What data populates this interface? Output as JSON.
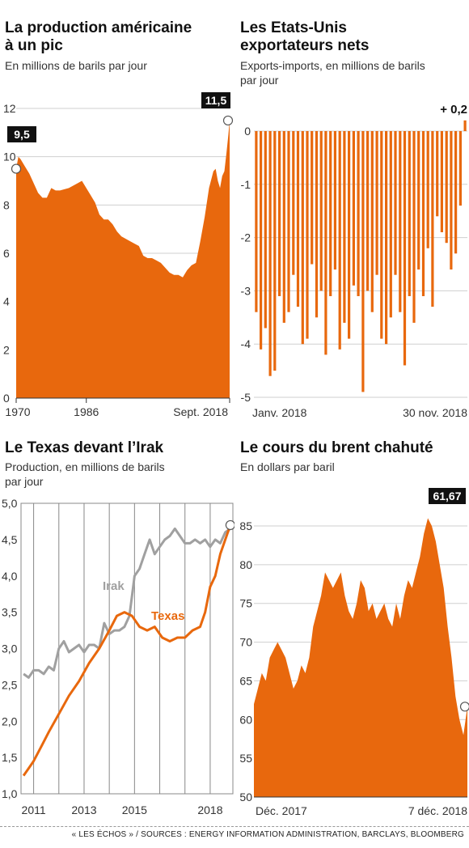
{
  "source": "« LES ÉCHOS » / SOURCES : ENERGY INFORMATION ADMINISTRATION, BARCLAYS, BLOOMBERG",
  "colors": {
    "orange": "#e8680d",
    "grey": "#a0a0a0",
    "grid": "#cfcfcf",
    "text": "#111111"
  },
  "chart_data": [
    {
      "type": "area",
      "title": "La production américaine\nà un pic",
      "subtitle": "En millions de barils par jour",
      "ylim": [
        0,
        12
      ],
      "yticks": [
        "0",
        "2",
        "4",
        "6",
        "8",
        "10",
        "12"
      ],
      "xticks": [
        "1970",
        "1986",
        "Sept. 2018"
      ],
      "xlim": [
        1970,
        2018.7
      ],
      "x": [
        1970,
        1970.5,
        1971,
        1972,
        1973,
        1974,
        1975,
        1976,
        1977,
        1978,
        1979,
        1980,
        1982,
        1984,
        1985,
        1986,
        1987,
        1988,
        1989,
        1990,
        1991,
        1992,
        1993,
        1994,
        1995,
        1996,
        1997,
        1998,
        1999,
        2000,
        2001,
        2002,
        2003,
        2004,
        2005,
        2006,
        2007,
        2008,
        2009,
        2010,
        2011,
        2012,
        2013,
        2014,
        2015,
        2015.5,
        2016,
        2016.5,
        2017,
        2017.5,
        2018,
        2018.4,
        2018.7
      ],
      "values": [
        9.5,
        10,
        9.9,
        9.6,
        9.3,
        8.9,
        8.5,
        8.3,
        8.3,
        8.7,
        8.6,
        8.6,
        8.7,
        8.9,
        9.0,
        8.7,
        8.4,
        8.1,
        7.6,
        7.4,
        7.4,
        7.2,
        6.9,
        6.7,
        6.6,
        6.5,
        6.4,
        6.3,
        5.9,
        5.8,
        5.8,
        5.7,
        5.6,
        5.4,
        5.2,
        5.1,
        5.1,
        5.0,
        5.3,
        5.5,
        5.6,
        6.5,
        7.5,
        8.7,
        9.4,
        9.5,
        9.0,
        8.7,
        9.2,
        9.4,
        10.2,
        10.9,
        11.5
      ],
      "callouts": [
        {
          "label": "9,5",
          "x": 1970,
          "y": 9.5
        },
        {
          "label": "11,5",
          "x": 2018.7,
          "y": 11.5
        }
      ]
    },
    {
      "type": "bar",
      "title": "Les Etats-Unis\nexportateurs nets",
      "subtitle": "Exports-imports, en millions de barils\npar jour",
      "ylim": [
        -5,
        0.3
      ],
      "yticks": [
        "-5",
        "-4",
        "-3",
        "-2",
        "-1",
        "0"
      ],
      "xticks": [
        "Janv. 2018",
        "30 nov. 2018"
      ],
      "values": [
        -3.4,
        -4.1,
        -3.7,
        -4.6,
        -4.5,
        -3.1,
        -3.6,
        -3.4,
        -2.7,
        -3.3,
        -4.0,
        -3.9,
        -2.5,
        -3.5,
        -3.0,
        -4.2,
        -3.1,
        -2.6,
        -4.1,
        -3.6,
        -3.9,
        -2.9,
        -3.1,
        -4.9,
        -3.0,
        -3.4,
        -2.7,
        -3.9,
        -4.0,
        -3.5,
        -2.7,
        -3.4,
        -4.4,
        -3.1,
        -3.6,
        -2.6,
        -3.1,
        -2.2,
        -3.3,
        -1.6,
        -1.9,
        -2.1,
        -2.6,
        -2.3,
        -1.4,
        0.2
      ],
      "callouts": [
        {
          "label": "+ 0,2"
        }
      ]
    },
    {
      "type": "line",
      "title": "Le Texas devant l’Irak",
      "subtitle": "Production, en millions de barils\npar jour",
      "ylim": [
        1.0,
        5.0
      ],
      "yticks": [
        "1,0",
        "1,5",
        "2,0",
        "2,5",
        "3,0",
        "3,5",
        "4,0",
        "4,5",
        "5,0"
      ],
      "xticks": [
        "2011",
        "2013",
        "2015",
        "2018"
      ],
      "xlim": [
        2010.5,
        2018.9
      ],
      "series": [
        {
          "name": "Irak",
          "x": [
            2010.6,
            2010.8,
            2011.0,
            2011.2,
            2011.4,
            2011.6,
            2011.8,
            2012.0,
            2012.2,
            2012.4,
            2012.6,
            2012.8,
            2013.0,
            2013.2,
            2013.4,
            2013.6,
            2013.8,
            2014.0,
            2014.2,
            2014.4,
            2014.6,
            2014.8,
            2015.0,
            2015.2,
            2015.4,
            2015.6,
            2015.8,
            2016.0,
            2016.2,
            2016.4,
            2016.6,
            2016.8,
            2017.0,
            2017.2,
            2017.4,
            2017.6,
            2017.8,
            2018.0,
            2018.2,
            2018.4,
            2018.6,
            2018.8
          ],
          "y": [
            2.65,
            2.6,
            2.7,
            2.7,
            2.65,
            2.75,
            2.7,
            3.0,
            3.1,
            2.95,
            3.0,
            3.05,
            2.95,
            3.05,
            3.05,
            3.0,
            3.35,
            3.2,
            3.25,
            3.25,
            3.3,
            3.45,
            4.0,
            4.1,
            4.3,
            4.5,
            4.3,
            4.4,
            4.5,
            4.55,
            4.65,
            4.55,
            4.45,
            4.45,
            4.5,
            4.45,
            4.5,
            4.4,
            4.5,
            4.45,
            4.6,
            4.65
          ]
        },
        {
          "name": "Texas",
          "x": [
            2010.6,
            2010.8,
            2011.0,
            2011.3,
            2011.6,
            2012.0,
            2012.4,
            2012.8,
            2013.2,
            2013.6,
            2014.0,
            2014.3,
            2014.6,
            2014.9,
            2015.2,
            2015.5,
            2015.8,
            2016.1,
            2016.4,
            2016.7,
            2017.0,
            2017.3,
            2017.6,
            2017.8,
            2018.0,
            2018.2,
            2018.4,
            2018.6,
            2018.8
          ],
          "y": [
            1.25,
            1.35,
            1.45,
            1.65,
            1.85,
            2.1,
            2.35,
            2.55,
            2.8,
            3.0,
            3.25,
            3.45,
            3.5,
            3.45,
            3.3,
            3.25,
            3.3,
            3.15,
            3.1,
            3.15,
            3.15,
            3.25,
            3.3,
            3.5,
            3.85,
            4.0,
            4.3,
            4.5,
            4.7
          ]
        }
      ]
    },
    {
      "type": "area",
      "title": "Le cours du brent chahuté",
      "subtitle": "En dollars par baril",
      "ylim": [
        50,
        87
      ],
      "yticks": [
        "50",
        "55",
        "60",
        "65",
        "70",
        "75",
        "80",
        "85"
      ],
      "xticks": [
        "Déc. 2017",
        "7 déc. 2018"
      ],
      "values": [
        62,
        64,
        66,
        65,
        68,
        69,
        70,
        69,
        68,
        66,
        64,
        65,
        67,
        66,
        68,
        72,
        74,
        76,
        79,
        78,
        77,
        78,
        79,
        76,
        74,
        73,
        75,
        78,
        77,
        74,
        75,
        73,
        74,
        75,
        73,
        72,
        75,
        73,
        76,
        78,
        77,
        79,
        81,
        84,
        86,
        85,
        83,
        80,
        77,
        72,
        68,
        63,
        60,
        58,
        61.67
      ],
      "callouts": [
        {
          "label": "61,67"
        }
      ]
    }
  ]
}
